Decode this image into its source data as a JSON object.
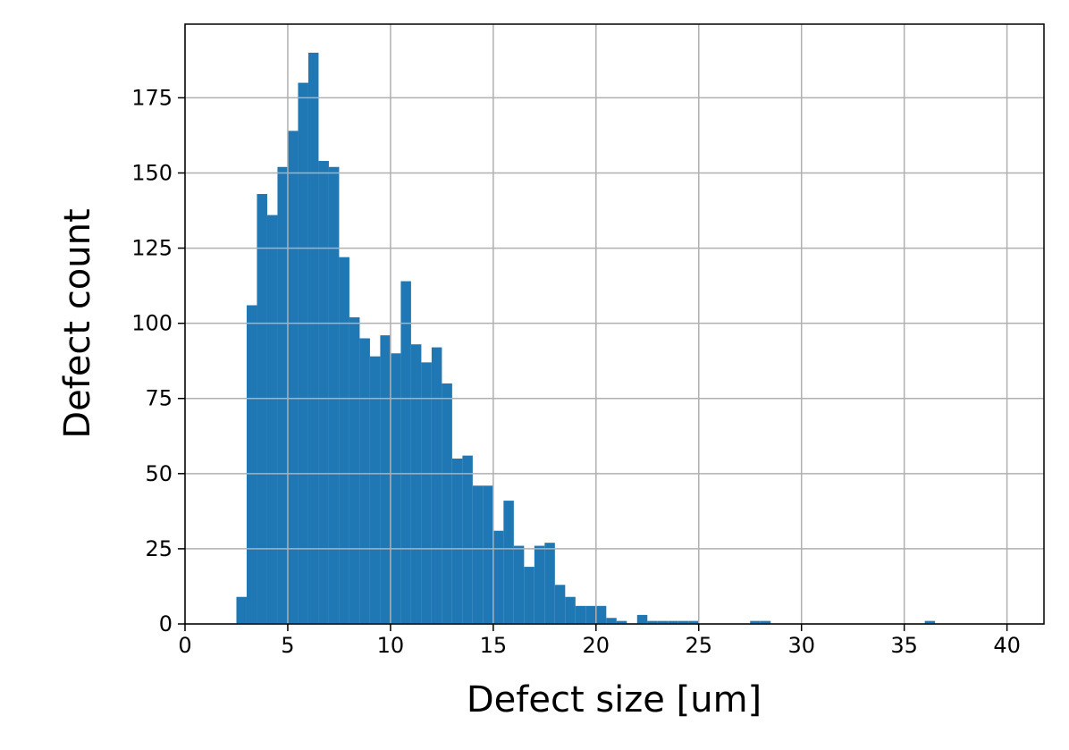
{
  "chart_data": {
    "type": "histogram",
    "xlabel": "Defect size [um]",
    "ylabel": "Defect count",
    "color": "#1f77b4",
    "bins": [
      2.5,
      3,
      3.5,
      4,
      4.5,
      5,
      5.5,
      6,
      6.5,
      7,
      7.5,
      8,
      8.5,
      9,
      9.5,
      10,
      10.5,
      11,
      11.5,
      12,
      12.5,
      13,
      13.5,
      14,
      14.5,
      15,
      15.5,
      16,
      16.5,
      17,
      17.5,
      18,
      18.5,
      19,
      19.5,
      20,
      20.5,
      21,
      21.5,
      22,
      22.5,
      23,
      23.5,
      24,
      24.5,
      25,
      25.5,
      26,
      26.5,
      27,
      27.5,
      28,
      28.5,
      29,
      29.5,
      30,
      30.5,
      31,
      31.5,
      32,
      32.5,
      33,
      33.5,
      34,
      34.5,
      35,
      35.5,
      36,
      36.5
    ],
    "values": [
      9,
      106,
      143,
      136,
      152,
      164,
      180,
      190,
      154,
      152,
      122,
      102,
      95,
      89,
      96,
      90,
      114,
      93,
      87,
      92,
      80,
      55,
      56,
      46,
      46,
      31,
      41,
      26,
      19,
      26,
      27,
      13,
      9,
      6,
      6,
      6,
      2,
      1,
      0,
      3,
      1,
      1,
      1,
      1,
      1,
      0,
      0,
      0,
      0,
      0,
      1,
      1,
      0,
      0,
      0,
      0,
      0,
      0,
      0,
      0,
      0,
      0,
      0,
      0,
      0,
      0,
      0,
      1
    ],
    "xlim": [
      0,
      41.8
    ],
    "xticks": [
      0,
      5,
      10,
      15,
      20,
      25,
      30,
      35,
      40
    ],
    "ylim": [
      0,
      199.5
    ],
    "yticks": [
      0,
      25,
      50,
      75,
      100,
      125,
      150,
      175
    ],
    "grid": true
  }
}
